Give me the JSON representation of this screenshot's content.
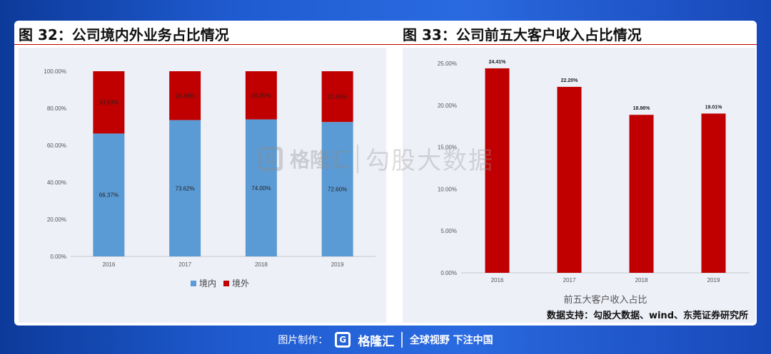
{
  "fig_left_title": "图 32：公司境内外业务占比情况",
  "fig_right_title": "图 33：公司前五大客户收入占比情况",
  "source_note": "数据支持：勾股大数据、wind、东莞证券研究所",
  "watermark": {
    "brand": "格隆汇",
    "tag": "勾股大数据",
    "icon": "g-logo-icon"
  },
  "footer": {
    "label": "图片制作：",
    "brand": "格隆汇",
    "slogan": "全球视野 下注中国",
    "icon": "g-logo-icon"
  },
  "colors": {
    "domestic": "#5b9bd5",
    "overseas": "#c00000",
    "bar": "#c00000"
  },
  "chart_data": [
    {
      "type": "bar",
      "stacked": true,
      "categories": [
        "2016",
        "2017",
        "2018",
        "2019"
      ],
      "series": [
        {
          "name": "境内",
          "values": [
            66.37,
            73.62,
            74.0,
            72.6
          ],
          "labels": [
            "66.37%",
            "73.62%",
            "74.00%",
            "72.60%"
          ]
        },
        {
          "name": "境外",
          "values": [
            33.63,
            26.38,
            26.0,
            27.4
          ],
          "labels": [
            "33.63%",
            "26.38%",
            "26.00%",
            "27.40%"
          ]
        }
      ],
      "ylim": [
        0,
        100
      ],
      "yticks": [
        "0.00%",
        "20.00%",
        "40.00%",
        "60.00%",
        "80.00%",
        "100.00%"
      ],
      "legend_position": "bottom",
      "grid": false
    },
    {
      "type": "bar",
      "categories": [
        "2016",
        "2017",
        "2018",
        "2019"
      ],
      "values": [
        24.41,
        22.2,
        18.86,
        19.01
      ],
      "labels": [
        "24.41%",
        "22.20%",
        "18.86%",
        "19.01%"
      ],
      "xlabel": "前五大客户收入占比",
      "ylim": [
        0,
        25
      ],
      "yticks": [
        "0.00%",
        "5.00%",
        "10.00%",
        "15.00%",
        "20.00%",
        "25.00%"
      ],
      "grid": false
    }
  ]
}
